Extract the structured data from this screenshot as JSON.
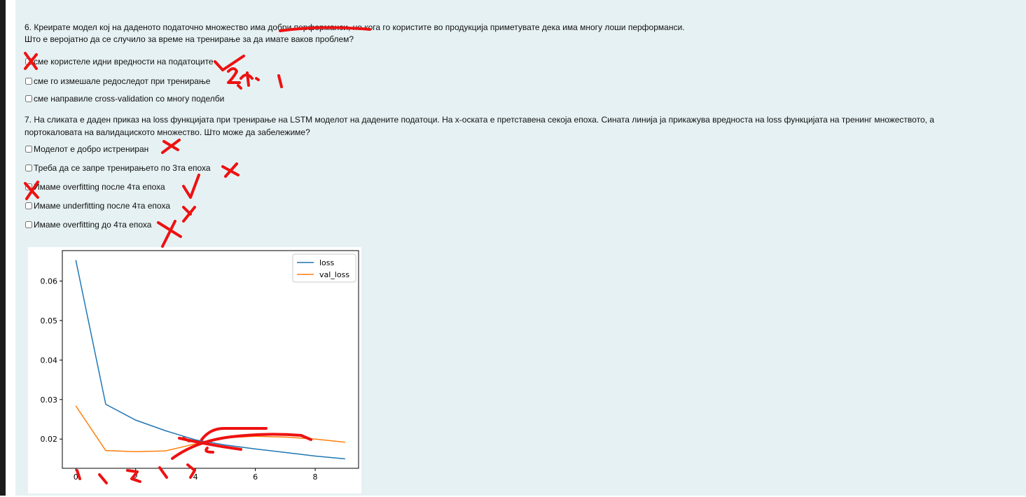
{
  "q6": {
    "line1": "6. Креирате модел кој на даденото податочно множество има добри перформанси, но кога го користите во продукција приметувате дека има многу лоши перформанси.",
    "line2": "Што е веројатно да се случило за време на тренирање за да имате ваков проблем?",
    "options": [
      {
        "label": "сме користеле идни вредности на податоците",
        "checked": false
      },
      {
        "label": "сме го измешале редоследот при тренирање",
        "checked": false
      },
      {
        "label": "сме направиле cross-validation со многу поделби",
        "checked": false
      }
    ]
  },
  "q7": {
    "line1": "7. На сликата е даден приказ на loss функцијата при тренирање на LSTM моделот на дадените податоци. На x-оската е претставена секоја епоха. Сината линија ја прикажува вредноста на loss функцијата на тренинг множеството, а",
    "line2": "портокаловата на валидациското множество. Што може да забележиме?",
    "options": [
      {
        "label": "Моделот е добро истрениран",
        "checked": false
      },
      {
        "label": "Треба да се запре тренирањето по 3та епоха",
        "checked": false
      },
      {
        "label": "Имаме overfitting после 4та епоха",
        "checked": false
      },
      {
        "label": "Имаме underfitting после 4та епоха",
        "checked": false
      },
      {
        "label": "Имаме overfitting до 4та епоха",
        "checked": false
      }
    ]
  },
  "colors": {
    "panel": "#e6f1f3",
    "loss": "#1f77b4",
    "val_loss": "#ff7f0e",
    "ink": "#ee1111"
  },
  "chart_data": {
    "type": "line",
    "x": [
      0,
      1,
      2,
      3,
      4,
      5,
      6,
      7,
      8,
      9
    ],
    "series": [
      {
        "name": "loss",
        "values": [
          0.0653,
          0.0288,
          0.0248,
          0.0221,
          0.0198,
          0.0185,
          0.0175,
          0.0166,
          0.0157,
          0.015
        ]
      },
      {
        "name": "val_loss",
        "values": [
          0.0284,
          0.0171,
          0.0168,
          0.017,
          0.0188,
          0.0203,
          0.0207,
          0.0205,
          0.02,
          0.0192
        ]
      }
    ],
    "xticks": [
      "0",
      "2",
      "4",
      "6",
      "8"
    ],
    "yticks": [
      "0.02",
      "0.03",
      "0.04",
      "0.05",
      "0.06"
    ],
    "xlim": [
      -0.45,
      9.45
    ],
    "ylim": [
      0.0126,
      0.0677
    ],
    "legend": "upper right",
    "grid": false
  }
}
